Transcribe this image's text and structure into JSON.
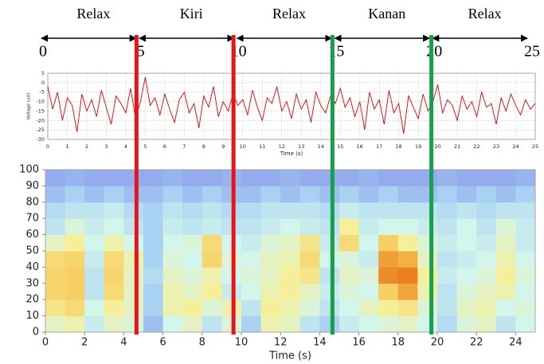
{
  "chart_data": [
    {
      "type": "timeline",
      "categories": [
        "Relax",
        "Kiri",
        "Relax",
        "Kanan",
        "Relax"
      ],
      "xlim": [
        0,
        25
      ],
      "xticks": [
        0,
        5,
        10,
        15,
        20,
        25
      ]
    },
    {
      "type": "line",
      "xlabel": "Time (s)",
      "ylabel": "Voltage (uV)",
      "color": "#e00000",
      "x": [
        0,
        0.25,
        0.5,
        0.75,
        1,
        1.25,
        1.5,
        1.75,
        2,
        2.25,
        2.5,
        2.75,
        3,
        3.25,
        3.5,
        3.75,
        4,
        4.25,
        4.5,
        4.75,
        5,
        5.25,
        5.5,
        5.75,
        6,
        6.25,
        6.5,
        6.75,
        7,
        7.25,
        7.5,
        7.75,
        8,
        8.25,
        8.5,
        8.75,
        9,
        9.25,
        9.5,
        9.75,
        10,
        10.25,
        10.5,
        10.75,
        11,
        11.25,
        11.5,
        11.75,
        12,
        12.25,
        12.5,
        12.75,
        13,
        13.25,
        13.5,
        13.75,
        14,
        14.25,
        14.5,
        14.75,
        15,
        15.25,
        15.5,
        15.75,
        16,
        16.25,
        16.5,
        16.75,
        17,
        17.25,
        17.5,
        17.75,
        18,
        18.25,
        18.5,
        18.75,
        19,
        19.25,
        19.5,
        19.75,
        20,
        20.25,
        20.5,
        20.75,
        21,
        21.25,
        21.5,
        21.75,
        22,
        22.25,
        22.5,
        22.75,
        23,
        23.25,
        23.5,
        23.75,
        24,
        24.25,
        24.5,
        24.75,
        25
      ],
      "values": [
        -2,
        -14,
        -5,
        -20,
        -8,
        -12,
        -26,
        -6,
        -15,
        -9,
        -18,
        -4,
        -13,
        -22,
        -7,
        -11,
        -16,
        -3,
        -19,
        -10,
        3,
        -12,
        -8,
        -17,
        -6,
        -14,
        -21,
        -9,
        -5,
        -16,
        -11,
        -24,
        -7,
        -13,
        -2,
        -18,
        -10,
        -15,
        -6,
        -12,
        -9,
        -17,
        -4,
        -13,
        -20,
        -8,
        -11,
        -2,
        -15,
        -10,
        -19,
        -6,
        -14,
        -9,
        -21,
        -5,
        -12,
        -16,
        -7,
        -11,
        -3,
        -13,
        -8,
        -18,
        -10,
        -25,
        -5,
        -14,
        -9,
        -22,
        -4,
        -16,
        -11,
        -27,
        -7,
        -13,
        -19,
        -6,
        -15,
        -10,
        -1,
        -16,
        -9,
        -12,
        -20,
        -7,
        -14,
        -10,
        -18,
        -5,
        -13,
        -11,
        -22,
        -8,
        -15,
        -6,
        -12,
        -17,
        -9,
        -14,
        -11
      ],
      "xlim": [
        0,
        25
      ],
      "xticks": [
        0,
        1,
        2,
        3,
        4,
        5,
        6,
        7,
        8,
        9,
        10,
        11,
        12,
        13,
        14,
        15,
        16,
        17,
        18,
        19,
        20,
        21,
        22,
        23,
        24,
        25
      ],
      "ylim": [
        -30,
        5
      ],
      "yticks": [
        -30,
        -25,
        -20,
        -15,
        -10,
        -5,
        0,
        5
      ],
      "grid": true
    },
    {
      "type": "heatmap",
      "xlabel": "Time (s)",
      "xbins": [
        0,
        1,
        2,
        3,
        4,
        5,
        6,
        7,
        8,
        9,
        10,
        11,
        12,
        13,
        14,
        15,
        16,
        17,
        18,
        19,
        20,
        21,
        22,
        23,
        24,
        25
      ],
      "ybins": [
        0,
        10,
        20,
        30,
        40,
        50,
        60,
        70,
        80,
        90,
        100
      ],
      "values": [
        [
          0.5,
          0.55,
          0.35,
          0.5,
          0.45,
          0.15,
          0.4,
          0.5,
          0.3,
          0.45,
          0.2,
          0.55,
          0.5,
          0.3,
          0.2,
          0.35,
          0.4,
          0.45,
          0.5,
          0.4,
          0.25,
          0.45,
          0.5,
          0.3,
          0.4
        ],
        [
          0.65,
          0.7,
          0.4,
          0.6,
          0.5,
          0.2,
          0.55,
          0.6,
          0.45,
          0.55,
          0.3,
          0.6,
          0.55,
          0.45,
          0.3,
          0.4,
          0.5,
          0.6,
          0.65,
          0.45,
          0.3,
          0.5,
          0.55,
          0.4,
          0.45
        ],
        [
          0.72,
          0.75,
          0.3,
          0.7,
          0.5,
          0.2,
          0.55,
          0.5,
          0.6,
          0.35,
          0.4,
          0.55,
          0.6,
          0.5,
          0.35,
          0.45,
          0.4,
          0.75,
          0.88,
          0.55,
          0.3,
          0.45,
          0.5,
          0.55,
          0.4
        ],
        [
          0.72,
          0.75,
          0.3,
          0.72,
          0.5,
          0.25,
          0.5,
          0.45,
          0.55,
          0.4,
          0.45,
          0.5,
          0.6,
          0.65,
          0.3,
          0.5,
          0.45,
          0.95,
          0.98,
          0.6,
          0.35,
          0.4,
          0.45,
          0.6,
          0.45
        ],
        [
          0.7,
          0.72,
          0.35,
          0.7,
          0.55,
          0.2,
          0.45,
          0.4,
          0.72,
          0.45,
          0.4,
          0.5,
          0.55,
          0.7,
          0.4,
          0.45,
          0.35,
          0.9,
          0.85,
          0.5,
          0.3,
          0.35,
          0.4,
          0.55,
          0.4
        ],
        [
          0.5,
          0.6,
          0.4,
          0.55,
          0.4,
          0.2,
          0.4,
          0.45,
          0.7,
          0.4,
          0.35,
          0.45,
          0.5,
          0.65,
          0.35,
          0.7,
          0.4,
          0.75,
          0.6,
          0.45,
          0.35,
          0.4,
          0.35,
          0.5,
          0.35
        ],
        [
          0.3,
          0.45,
          0.35,
          0.4,
          0.3,
          0.2,
          0.35,
          0.3,
          0.35,
          0.3,
          0.3,
          0.35,
          0.4,
          0.35,
          0.3,
          0.6,
          0.35,
          0.4,
          0.4,
          0.35,
          0.3,
          0.4,
          0.3,
          0.45,
          0.35
        ],
        [
          0.25,
          0.3,
          0.3,
          0.35,
          0.25,
          0.2,
          0.3,
          0.25,
          0.3,
          0.25,
          0.25,
          0.3,
          0.3,
          0.3,
          0.25,
          0.35,
          0.3,
          0.3,
          0.3,
          0.3,
          0.25,
          0.3,
          0.25,
          0.3,
          0.3
        ],
        [
          0.15,
          0.2,
          0.15,
          0.2,
          0.15,
          0.15,
          0.2,
          0.15,
          0.2,
          0.15,
          0.15,
          0.2,
          0.15,
          0.2,
          0.15,
          0.2,
          0.15,
          0.2,
          0.15,
          0.15,
          0.2,
          0.15,
          0.2,
          0.15,
          0.2
        ],
        [
          0.1,
          0.12,
          0.1,
          0.1,
          0.1,
          0.1,
          0.12,
          0.1,
          0.1,
          0.12,
          0.1,
          0.1,
          0.12,
          0.1,
          0.1,
          0.1,
          0.12,
          0.1,
          0.1,
          0.1,
          0.12,
          0.1,
          0.1,
          0.1,
          0.12
        ]
      ],
      "zlim": [
        0,
        1
      ],
      "colormap": [
        "#7f86e8",
        "#a9d2f2",
        "#d2f5ec",
        "#f5ef9a",
        "#f7c451",
        "#e8781c"
      ],
      "xlim": [
        0,
        25
      ],
      "xticks": [
        0,
        2,
        4,
        6,
        8,
        10,
        12,
        14,
        16,
        18,
        20,
        22,
        24
      ],
      "ylim": [
        0,
        100
      ],
      "yticks": [
        0,
        10,
        20,
        30,
        40,
        50,
        60,
        70,
        80,
        90,
        100
      ]
    },
    {
      "type": "markers",
      "x": [
        4.65,
        9.6,
        14.65,
        19.7
      ],
      "colors": [
        "#e8141c",
        "#e8141c",
        "#17a04a",
        "#17a04a"
      ]
    }
  ]
}
